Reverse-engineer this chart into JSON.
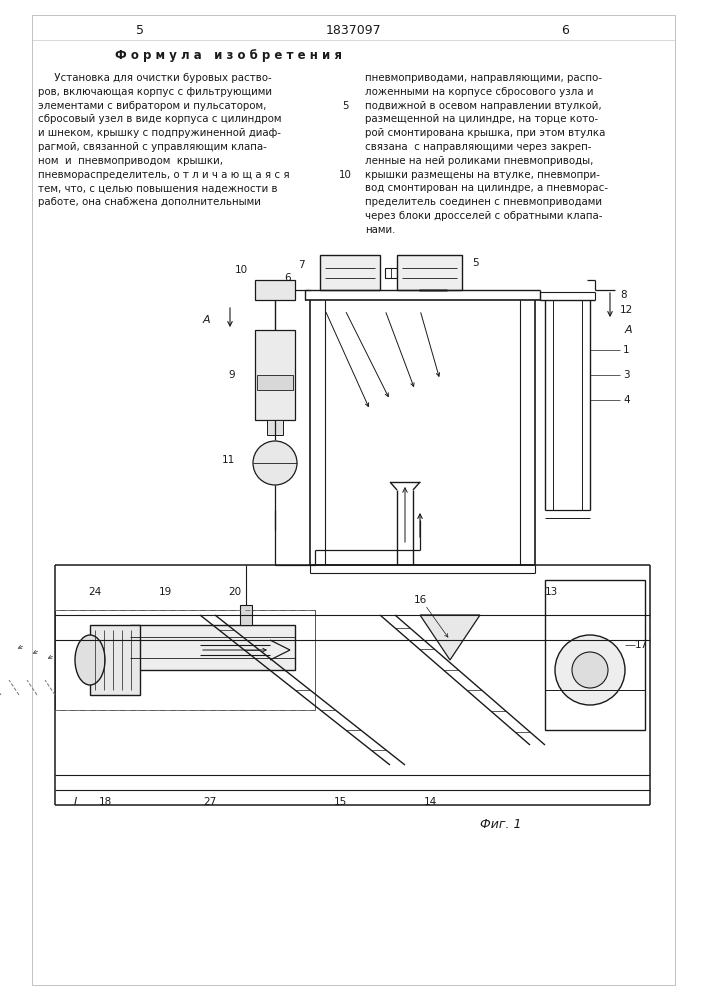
{
  "page_num_left": "5",
  "page_num_center": "1837097",
  "page_num_right": "6",
  "section_title": "Ф о р м у л а   и з о б р е т е н и я",
  "left_col_lines": [
    "     Установка для очистки буровых раство-",
    "ров, включающая корпус с фильтрующими",
    "элементами с вибратором и пульсатором,",
    "сбросовый узел в виде корпуса с цилиндром",
    "и шнеком, крышку с подпружиненной диаф-",
    "рагмой, связанной с управляющим клапа-",
    "ном  и  пневмоприводом  крышки,",
    "пневмораспределитель, о т л и ч а ю щ а я с я",
    "тем, что, с целью повышения надежности в",
    "работе, она снабжена дополнительными"
  ],
  "right_col_lines": [
    "пневмоприводами, направляющими, распо-",
    "ложенными на корпусе сбросового узла и",
    "подвижной в осевом направлении втулкой,",
    "размещенной на цилиндре, на торце кото-",
    "рой смонтирована крышка, при этом втулка",
    "связана  с направляющими через закреп-",
    "ленные на ней роликами пневмоприводы,",
    "крышки размещены на втулке, пневмопри-",
    "вод смонтирован на цилиндре, а пневморас-",
    "пределитель соединен с пневмоприводами",
    "через блоки дросселей с обратными клапа-",
    "нами."
  ],
  "fig_label": "Фиг. 1",
  "bg_color": "#ffffff",
  "text_color": "#1a1a1a",
  "line_color": "#1a1a1a"
}
